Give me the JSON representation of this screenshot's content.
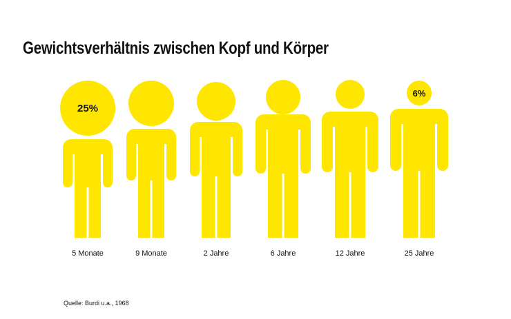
{
  "title": "Gewichtsverhältnis zwischen Kopf und Körper",
  "source": "Quelle: Burdi u.a., 1968",
  "colors": {
    "figure": "#FFE600",
    "text": "#111111"
  },
  "chart_data": {
    "type": "pictogram",
    "title": "Gewichtsverhältnis zwischen Kopf und Körper",
    "categories": [
      "5 Monate",
      "9 Monate",
      "2 Jahre",
      "6 Jahre",
      "12 Jahre",
      "25 Jahre"
    ],
    "annotations": [
      {
        "category": "5 Monate",
        "head_share": "25%"
      },
      {
        "category": "25 Jahre",
        "head_share": "6%"
      }
    ]
  }
}
